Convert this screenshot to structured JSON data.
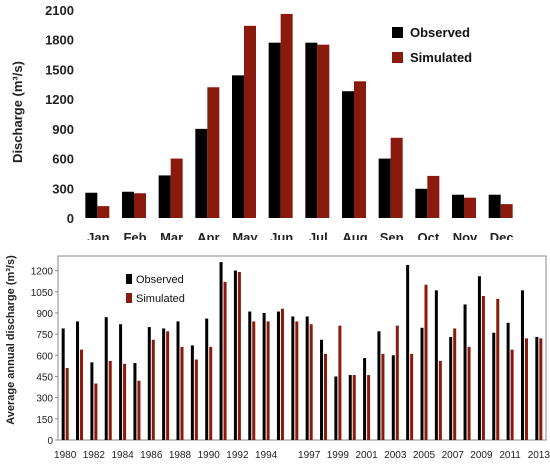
{
  "chart_data": [
    {
      "type": "bar",
      "ylabel": "Discharge (m³/s)",
      "ylim": [
        0,
        2100
      ],
      "yticks": [
        0,
        300,
        600,
        900,
        1200,
        1500,
        1800,
        2100
      ],
      "categories": [
        "Jan",
        "Feb",
        "Mar",
        "Apr",
        "May",
        "Jun",
        "Jul",
        "Aug",
        "Sep",
        "Oct",
        "Nov",
        "Dec"
      ],
      "series": [
        {
          "name": "Observed",
          "color": "#000000",
          "values": [
            255,
            265,
            430,
            900,
            1440,
            1770,
            1770,
            1280,
            600,
            295,
            235,
            235
          ]
        },
        {
          "name": "Simulated",
          "color": "#8b1a0e",
          "values": [
            120,
            250,
            600,
            1320,
            1940,
            2060,
            1750,
            1380,
            810,
            425,
            205,
            140
          ]
        }
      ],
      "legend_position": "top-right",
      "grid": false
    },
    {
      "type": "bar",
      "ylabel": "Average annual discharge (m³/s)",
      "ylim": [
        0,
        1275
      ],
      "yticks": [
        0,
        150,
        300,
        450,
        600,
        750,
        900,
        1050,
        1200
      ],
      "categories": [
        "1980",
        "1981",
        "1982",
        "1983",
        "1984",
        "1985",
        "1986",
        "1987",
        "1988",
        "1989",
        "1990",
        "1991",
        "1992",
        "1993",
        "1994",
        "1995",
        "1996",
        "1997",
        "1998",
        "1999",
        "2000",
        "2001",
        "2002",
        "2003",
        "2004",
        "2005",
        "2006",
        "2007",
        "2008",
        "2009",
        "2010",
        "2011",
        "2012",
        "2013"
      ],
      "xtick_labels": [
        "1980",
        "1982",
        "1984",
        "1986",
        "1988",
        "1990",
        "1992",
        "1994",
        "1997",
        "1999",
        "2001",
        "2003",
        "2005",
        "2007",
        "2009",
        "2011",
        "2013"
      ],
      "series": [
        {
          "name": "Observed",
          "color": "#000000",
          "values": [
            790,
            840,
            550,
            870,
            820,
            545,
            800,
            790,
            840,
            670,
            860,
            1260,
            1200,
            910,
            900,
            910,
            875,
            875,
            710,
            450,
            460,
            580,
            770,
            600,
            1240,
            795,
            1060,
            730,
            960,
            1160,
            760,
            830,
            1060,
            730
          ]
        },
        {
          "name": "Simulated",
          "color": "#8b1a0e",
          "values": [
            510,
            640,
            400,
            560,
            540,
            420,
            710,
            770,
            660,
            570,
            660,
            1120,
            1190,
            840,
            840,
            930,
            840,
            820,
            610,
            810,
            460,
            460,
            610,
            810,
            610,
            1100,
            560,
            790,
            660,
            1020,
            1000,
            640,
            720,
            720
          ]
        }
      ],
      "legend_position": "top-left",
      "grid": false
    }
  ]
}
